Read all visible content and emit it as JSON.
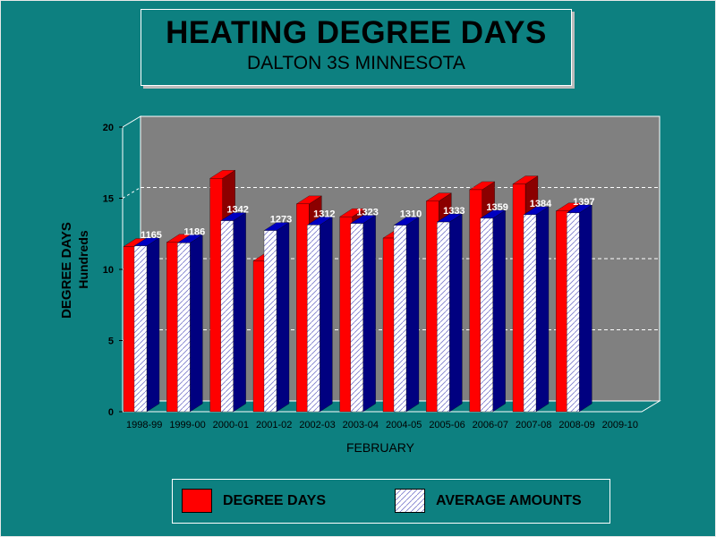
{
  "title": "HEATING DEGREE DAYS",
  "subtitle": "DALTON 3S MINNESOTA",
  "colors": {
    "background": "#0d8080",
    "plot_back": "#808080",
    "degree_days": "#ff0000",
    "degree_days_side": "#8b0000",
    "average_side": "#000080",
    "average_top": "#0000c0"
  },
  "chart_data": {
    "type": "bar",
    "title": "HEATING DEGREE DAYS",
    "subtitle": "DALTON 3S MINNESOTA",
    "xlabel": "FEBRUARY",
    "ylabel": "DEGREE DAYS",
    "ylabel_unit": "Hundreds",
    "ylim": [
      0,
      20
    ],
    "yticks": [
      0,
      5,
      10,
      15,
      20
    ],
    "grid": true,
    "legend_position": "bottom",
    "categories": [
      "1998-99",
      "1999-00",
      "2000-01",
      "2001-02",
      "2002-03",
      "2003-04",
      "2004-05",
      "2005-06",
      "2006-07",
      "2007-08",
      "2008-09",
      "2009-10"
    ],
    "series": [
      {
        "name": "DEGREE DAYS",
        "values": [
          11.6,
          11.9,
          16.4,
          10.6,
          14.6,
          13.7,
          12.2,
          14.8,
          15.6,
          16.0,
          14.1,
          null
        ]
      },
      {
        "name": "AVERAGE AMOUNTS",
        "values": [
          11.65,
          11.86,
          13.42,
          12.73,
          13.12,
          13.23,
          13.1,
          13.33,
          13.59,
          13.84,
          13.97,
          null
        ],
        "labels": [
          "1165",
          "1186",
          "1342",
          "1273",
          "1312",
          "1323",
          "1310",
          "1333",
          "1359",
          "1384",
          "1397",
          ""
        ]
      }
    ]
  },
  "legend": {
    "items": [
      {
        "label": "DEGREE DAYS"
      },
      {
        "label": "AVERAGE AMOUNTS"
      }
    ]
  }
}
